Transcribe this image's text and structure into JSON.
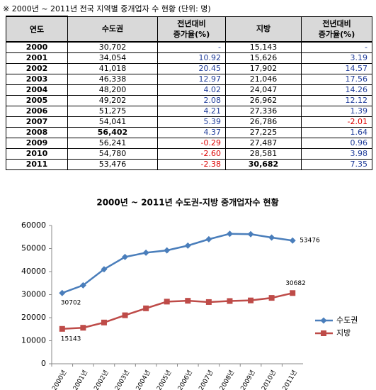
{
  "title": "※ 2000년 ~ 2011년 전국 지역별 중개업자 수 현황 (단위: 명)",
  "table": {
    "header": [
      "연도",
      "수도권",
      "전년대비\n증가율(%)",
      "지방",
      "전년대비\n증가율(%)"
    ],
    "rows": [
      [
        "2000",
        "30,702",
        "-",
        "15,143",
        "-"
      ],
      [
        "2001",
        "34,054",
        "10.92",
        "15,626",
        "3.19"
      ],
      [
        "2002",
        "41,018",
        "20.45",
        "17,902",
        "14.57"
      ],
      [
        "2003",
        "46,338",
        "12.97",
        "21,046",
        "17.56"
      ],
      [
        "2004",
        "48,200",
        "4.02",
        "24,047",
        "14.26"
      ],
      [
        "2005",
        "49,202",
        "2.08",
        "26,962",
        "12.12"
      ],
      [
        "2006",
        "51,275",
        "4.21",
        "27,336",
        "1.39"
      ],
      [
        "2007",
        "54,041",
        "5.39",
        "26,786",
        "-2.01"
      ],
      [
        "2008",
        "56,402",
        "4.37",
        "27,225",
        "1.64"
      ],
      [
        "2009",
        "56,241",
        "-0.29",
        "27,487",
        "0.96"
      ],
      [
        "2010",
        "54,780",
        "-2.60",
        "28,581",
        "3.98"
      ],
      [
        "2011",
        "53,476",
        "-2.38",
        "30,682",
        "7.35"
      ]
    ]
  },
  "chart_data": {
    "type": "line",
    "title": "2000년 ~ 2011년 수도권-지방 중개업자수 현황",
    "categories": [
      "2000년",
      "2001년",
      "2002년",
      "2003년",
      "2004년",
      "2005년",
      "2006년",
      "2007년",
      "2008년",
      "2009년",
      "2010년",
      "2011년"
    ],
    "series": [
      {
        "name": "수도권",
        "color": "#4a7ebb",
        "marker": "diamond",
        "values": [
          30702,
          34054,
          41018,
          46338,
          48200,
          49202,
          51275,
          54041,
          56402,
          56241,
          54780,
          53476
        ],
        "value_labels": [
          "30702",
          null,
          null,
          null,
          null,
          null,
          null,
          null,
          null,
          null,
          null,
          "53476"
        ]
      },
      {
        "name": "지방",
        "color": "#be4b48",
        "marker": "square",
        "values": [
          15143,
          15626,
          17902,
          21046,
          24047,
          26962,
          27336,
          26786,
          27225,
          27487,
          28581,
          30682
        ],
        "value_labels": [
          "15143",
          null,
          null,
          null,
          null,
          null,
          null,
          null,
          null,
          null,
          null,
          "30682"
        ]
      }
    ],
    "ylim": [
      0,
      60000
    ],
    "yticks": [
      0,
      10000,
      20000,
      30000,
      40000,
      50000,
      60000
    ],
    "grid": false,
    "legend": "right"
  }
}
